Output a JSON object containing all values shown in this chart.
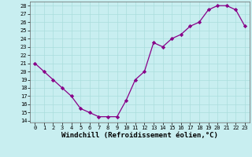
{
  "x": [
    0,
    1,
    2,
    3,
    4,
    5,
    6,
    7,
    8,
    9,
    10,
    11,
    12,
    13,
    14,
    15,
    16,
    17,
    18,
    19,
    20,
    21,
    22,
    23
  ],
  "y": [
    21,
    20,
    19,
    18,
    17,
    15.5,
    15,
    14.5,
    14.5,
    14.5,
    16.5,
    19,
    20,
    23.5,
    23,
    24,
    24.5,
    25.5,
    26,
    27.5,
    28,
    28,
    27.5,
    25.5
  ],
  "line_color": "#880088",
  "marker": "D",
  "marker_size": 2.2,
  "bg_color": "#c8eef0",
  "grid_color": "#aadddd",
  "xlabel": "Windchill (Refroidissement éolien,°C)",
  "ylim": [
    13.8,
    28.5
  ],
  "xlim": [
    -0.5,
    23.5
  ],
  "yticks": [
    14,
    15,
    16,
    17,
    18,
    19,
    20,
    21,
    22,
    23,
    24,
    25,
    26,
    27,
    28
  ],
  "xticks": [
    0,
    1,
    2,
    3,
    4,
    5,
    6,
    7,
    8,
    9,
    10,
    11,
    12,
    13,
    14,
    15,
    16,
    17,
    18,
    19,
    20,
    21,
    22,
    23
  ],
  "tick_fontsize": 5.0,
  "xlabel_fontsize": 6.5
}
